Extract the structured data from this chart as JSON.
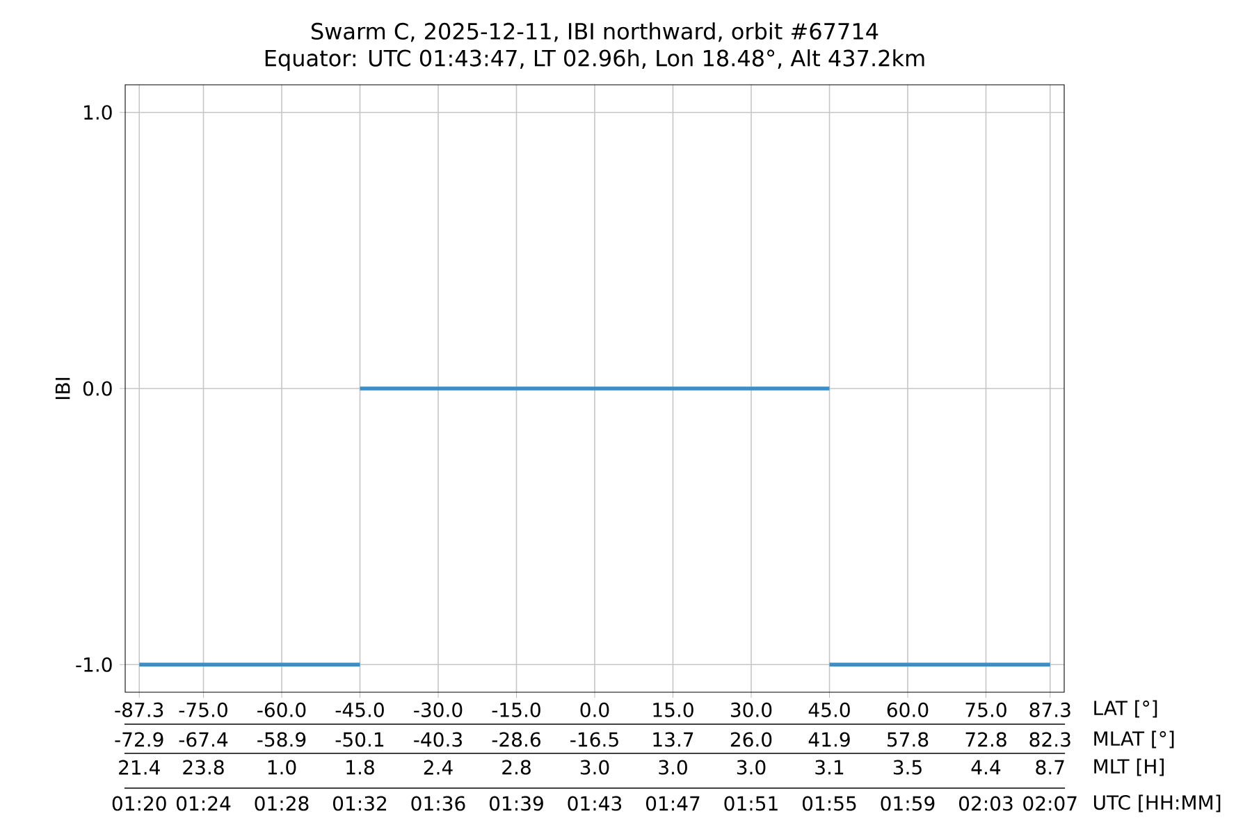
{
  "chart_data": {
    "type": "line",
    "title": "Swarm C, 2025-12-11, IBI northward, orbit #67714",
    "subtitle": "Equator: UTC 01:43:47, LT 02.96h, Lon 18.48°, Alt 437.2km",
    "ylabel": "IBI",
    "xlabel": "LAT [°]",
    "xlim": [
      -90,
      90
    ],
    "ylim": [
      -1.1,
      1.1
    ],
    "yticks": [
      {
        "value": -1,
        "label": "-1.0"
      },
      {
        "value": 0,
        "label": "0.0"
      },
      {
        "value": 1,
        "label": "1.0"
      }
    ],
    "xticks": [
      {
        "value": -87.3,
        "label": "-87.3"
      },
      {
        "value": -75,
        "label": "-75.0"
      },
      {
        "value": -60,
        "label": "-60.0"
      },
      {
        "value": -45,
        "label": "-45.0"
      },
      {
        "value": -30,
        "label": "-30.0"
      },
      {
        "value": -15,
        "label": "-15.0"
      },
      {
        "value": 0,
        "label": "0.0"
      },
      {
        "value": 15,
        "label": "15.0"
      },
      {
        "value": 30,
        "label": "30.0"
      },
      {
        "value": 45,
        "label": "45.0"
      },
      {
        "value": 60,
        "label": "60.0"
      },
      {
        "value": 75,
        "label": "75.0"
      },
      {
        "value": 87.3,
        "label": "87.3"
      }
    ],
    "annotations": [
      "-72.9",
      "-67.4",
      "-58.9",
      "-50.1",
      "-40.3",
      "-28.6",
      "-16.5",
      "13.7",
      "26.0",
      "41.9",
      "57.8",
      "72.8",
      "82.3",
      "MLAT [°]",
      "21.4",
      "23.8",
      "1.0",
      "1.8",
      "2.4",
      "2.8",
      "3.0",
      "3.0",
      "3.0",
      "3.1",
      "3.5",
      "4.4",
      "8.7",
      "MLT [H]",
      "01:20",
      "01:24",
      "01:28",
      "01:32",
      "01:36",
      "01:39",
      "01:43",
      "01:47",
      "01:51",
      "01:55",
      "01:59",
      "02:03",
      "02:07",
      "UTC [HH:MM]"
    ],
    "grid": true,
    "marker": "none",
    "line_style": "solid",
    "series": [
      {
        "color": "#3a8fc9",
        "x": [
          -87.3,
          -45
        ],
        "values": [
          -1,
          -1
        ]
      },
      {
        "color": "#3a8fc9",
        "x": [
          -45,
          45
        ],
        "values": [
          0,
          0
        ]
      },
      {
        "color": "#3a8fc9",
        "x": [
          45,
          87.3
        ],
        "values": [
          -1,
          -1
        ]
      }
    ]
  }
}
